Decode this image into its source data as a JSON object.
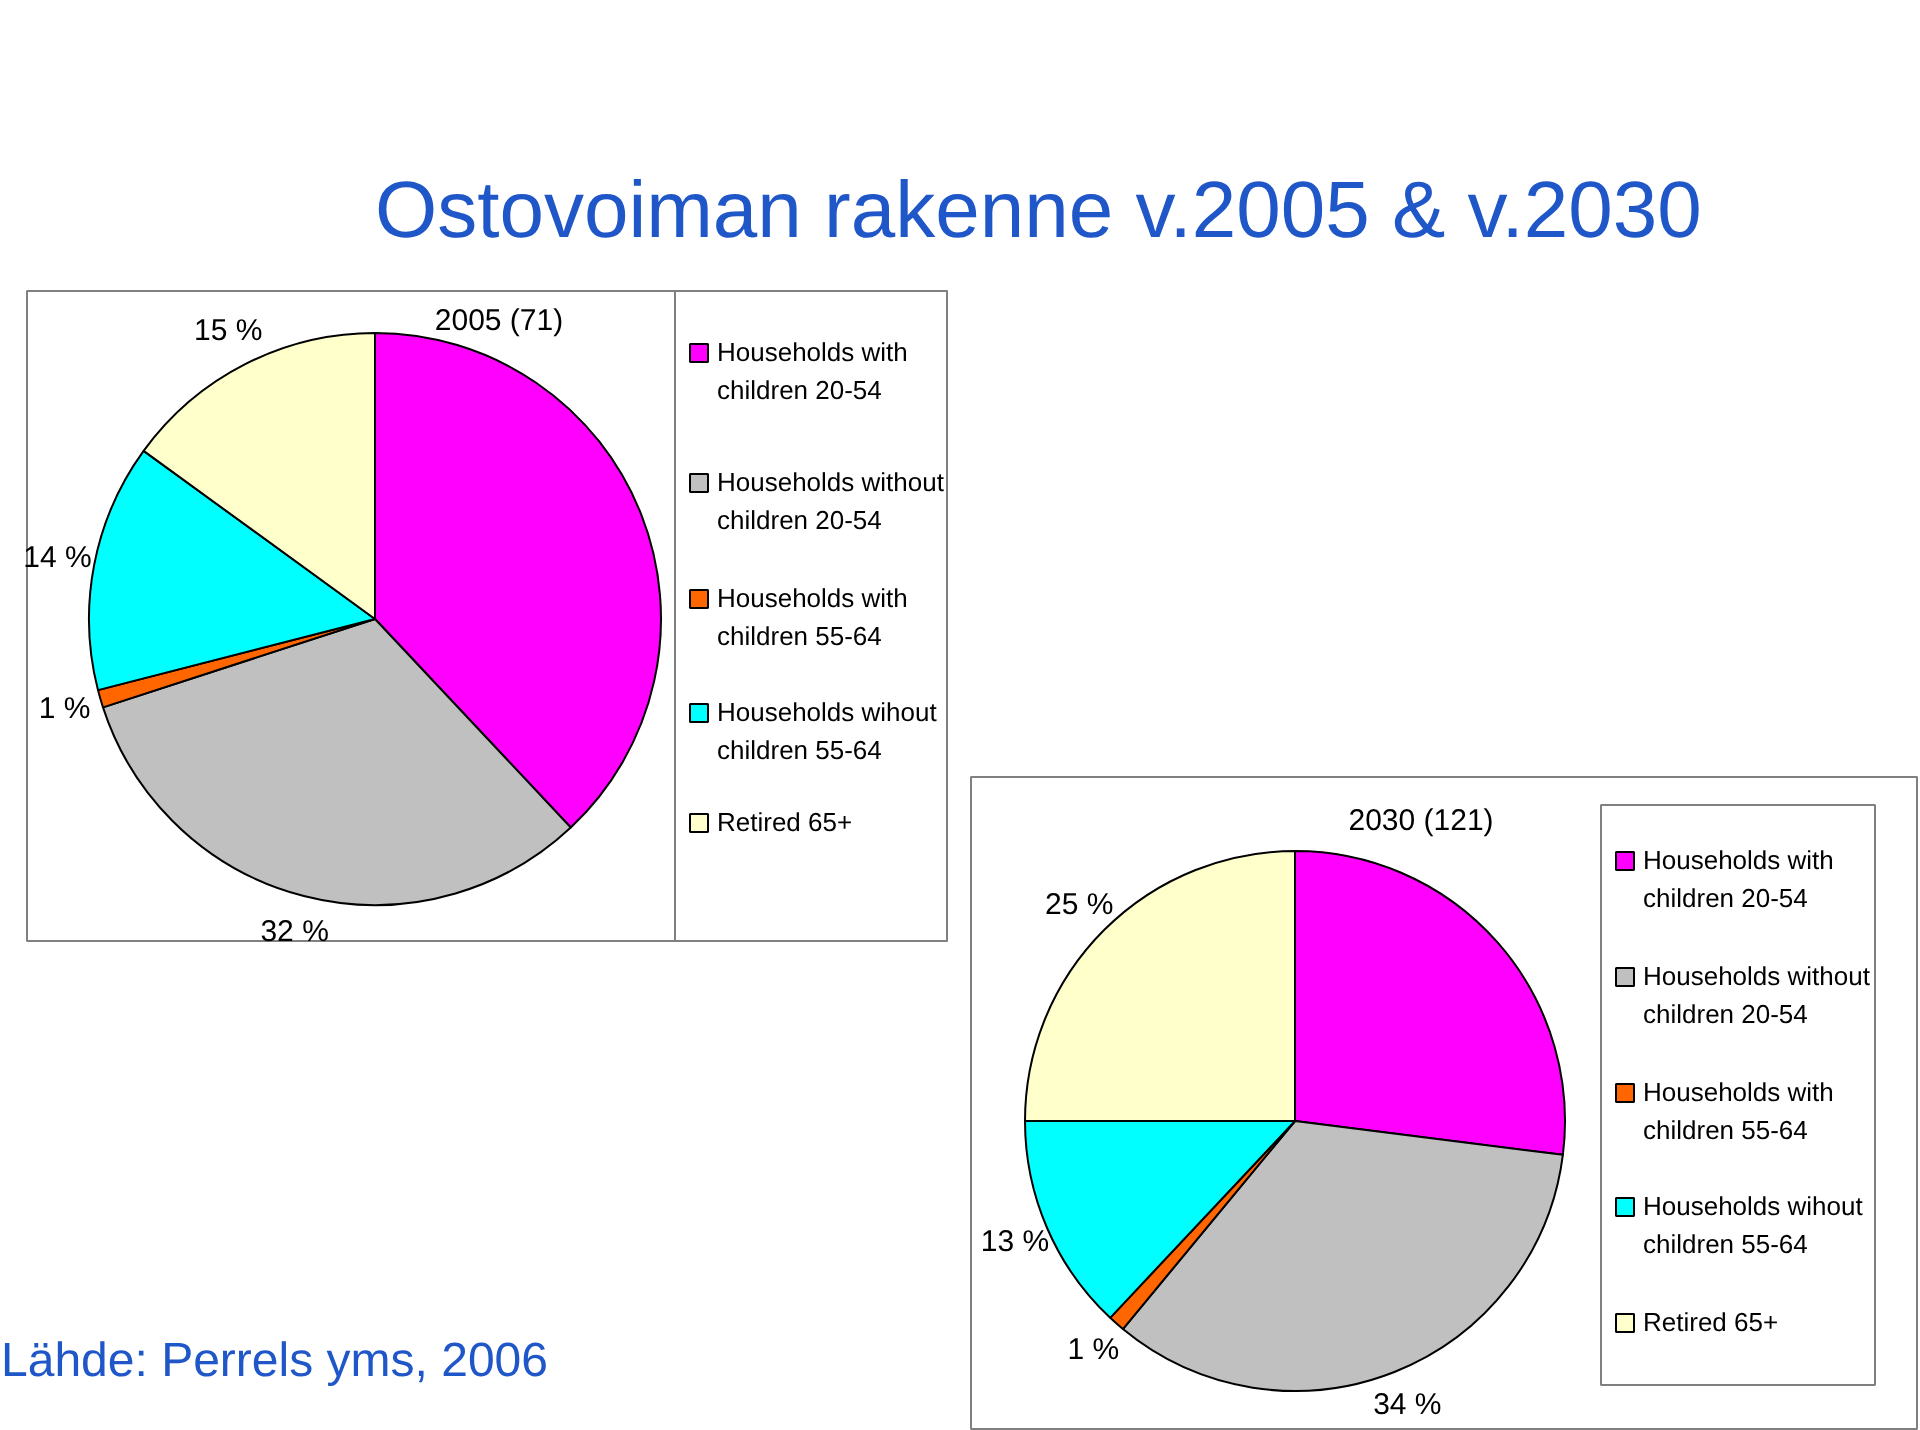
{
  "chart_data": [
    {
      "type": "pie",
      "title": "2005 (71)",
      "annotations": [
        "Ostovoiman rakenne v.2005 & v.2030"
      ],
      "categories": [
        "Households with children 20-54",
        "Households without children 20-54",
        "Households with children 55-64",
        "Households wihout children 55-64",
        "Retired 65+"
      ],
      "values": [
        38,
        32,
        1,
        14,
        15
      ],
      "colors": [
        "#ff00ff",
        "#c0c0c0",
        "#ff6600",
        "#00ffff",
        "#ffffcc"
      ],
      "value_labels": [
        null,
        "32 %",
        "1 %",
        "14 %",
        "15 %"
      ],
      "legend": "right"
    },
    {
      "type": "pie",
      "title": "2030 (121)",
      "annotations": [
        "Lähde: Perrels yms, 2006"
      ],
      "categories": [
        "Households with children 20-54",
        "Households without children 20-54",
        "Households with children 55-64",
        "Households wihout children 55-64",
        "Retired 65+"
      ],
      "values": [
        27,
        34,
        1,
        13,
        25
      ],
      "colors": [
        "#ff00ff",
        "#c0c0c0",
        "#ff6600",
        "#00ffff",
        "#ffffcc"
      ],
      "value_labels": [
        null,
        "34 %",
        "1 %",
        "13 %",
        "25 %"
      ],
      "legend": "right"
    }
  ]
}
